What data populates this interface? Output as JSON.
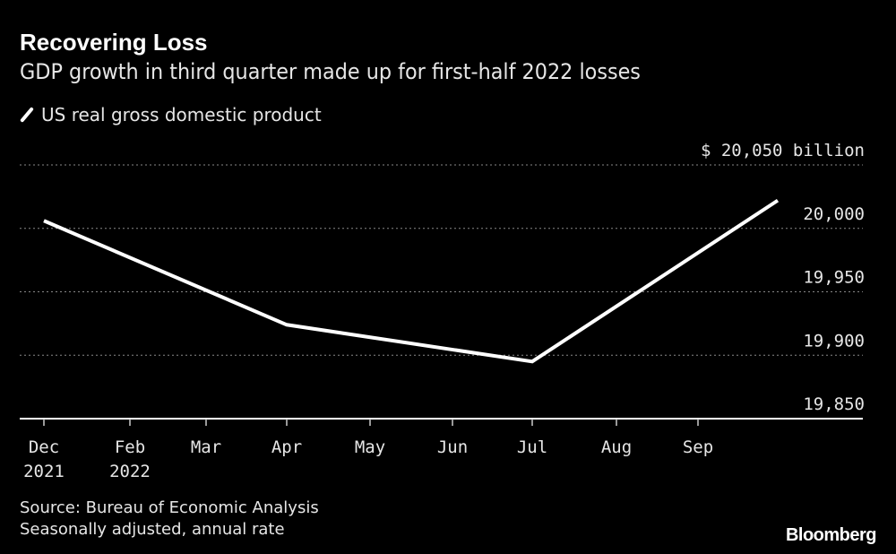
{
  "chart_data": {
    "type": "line",
    "title": "Recovering Loss",
    "subtitle": "GDP growth in third quarter made up for first-half 2022 losses",
    "legend": {
      "placement": "top-left",
      "entries": [
        "US real gross domestic product"
      ]
    },
    "series": [
      {
        "name": "US real gross domestic product",
        "color": "#ffffff",
        "x": [
          "2021-12",
          "2022-04",
          "2022-07",
          "2022-10"
        ],
        "values": [
          20006,
          19924,
          19895,
          20022
        ]
      }
    ],
    "y_ticks": [
      {
        "value": 20050,
        "label": "$ 20,050 billion"
      },
      {
        "value": 20000,
        "label": "20,000"
      },
      {
        "value": 19950,
        "label": "19,950"
      },
      {
        "value": 19900,
        "label": "19,900"
      },
      {
        "value": 19850,
        "label": "19,850"
      }
    ],
    "ylim": [
      19850,
      20050
    ],
    "x_ticks": [
      {
        "month": "2021-12",
        "label": "Dec",
        "sub": "2021"
      },
      {
        "month": "2022-02",
        "label": "Feb",
        "sub": "2022"
      },
      {
        "month": "2022-03",
        "label": "Mar",
        "sub": ""
      },
      {
        "month": "2022-04",
        "label": "Apr",
        "sub": ""
      },
      {
        "month": "2022-05",
        "label": "May",
        "sub": ""
      },
      {
        "month": "2022-06",
        "label": "Jun",
        "sub": ""
      },
      {
        "month": "2022-07",
        "label": "Jul",
        "sub": ""
      },
      {
        "month": "2022-08",
        "label": "Aug",
        "sub": ""
      },
      {
        "month": "2022-09",
        "label": "Sep",
        "sub": ""
      }
    ],
    "grid": true,
    "y_axis_side": "right",
    "background": "#000000"
  },
  "footer": {
    "source": "Source: Bureau of Economic Analysis",
    "note": "Seasonally adjusted, annual rate",
    "brand": "Bloomberg"
  }
}
